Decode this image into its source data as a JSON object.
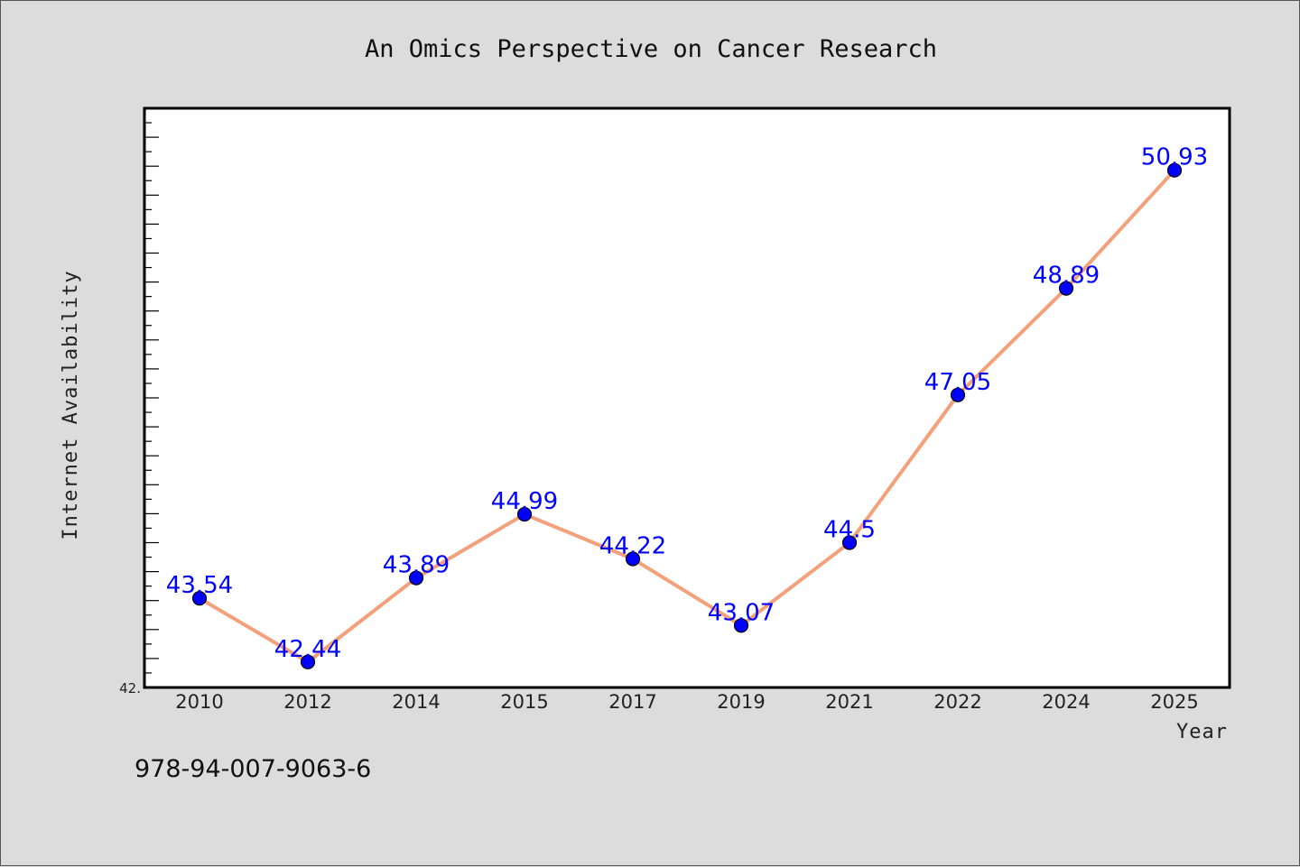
{
  "footer_text": "978-94-007-9063-6",
  "chart_data": {
    "type": "line",
    "title": "An Omics Perspective on Cancer Research",
    "xlabel": "Year",
    "ylabel": "Internet Availability",
    "categories": [
      "2010",
      "2012",
      "2014",
      "2015",
      "2017",
      "2019",
      "2021",
      "2022",
      "2024",
      "2025"
    ],
    "values": [
      43.54,
      42.44,
      43.89,
      44.99,
      44.22,
      43.07,
      44.5,
      47.05,
      48.89,
      50.93
    ],
    "labels": [
      "43.54",
      "42.44",
      "43.89",
      "44.99",
      "44.22",
      "43.07",
      "44.5",
      "47.05",
      "48.89",
      "50.93"
    ],
    "y_tick_labels": [
      "42."
    ],
    "ylim": [
      42.0,
      52.0
    ],
    "grid": false,
    "legend": "none",
    "line_color": "#f4a07a",
    "marker_color": "#0000ff",
    "label_color": "#0000ff"
  }
}
